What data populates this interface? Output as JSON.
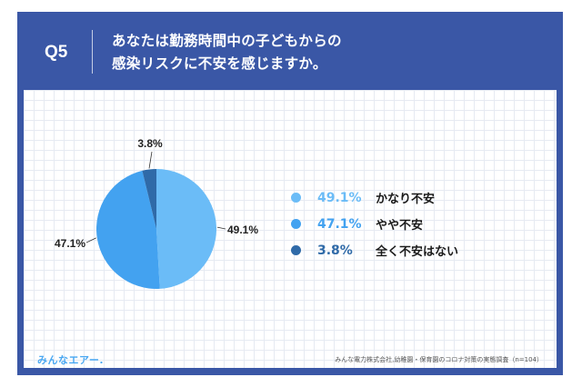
{
  "question": {
    "number": "Q5",
    "lines": [
      "あなたは勤務時間中の子どもからの",
      "感染リスクに不安を感じますか。"
    ]
  },
  "colors": {
    "header_bg": "#3a57a6",
    "slice_1": "#6bbcf7",
    "slice_2": "#43a2f0",
    "slice_3": "#2f6aa8"
  },
  "chart_data": {
    "type": "pie",
    "slices": [
      {
        "label": "かなり不安",
        "value": 49.1,
        "display": "49.1%"
      },
      {
        "label": "やや不安",
        "value": 47.1,
        "display": "47.1%"
      },
      {
        "label": "全く不安はない",
        "value": 3.8,
        "display": "3.8%"
      }
    ],
    "start": "12 o'clock",
    "direction": "clockwise",
    "legend_position": "right"
  },
  "footer": {
    "logo": "みんなエアー.",
    "source": "みんな電力株式会社,幼稚園・保育園のコロナ対策の実態調査（n=104）"
  }
}
